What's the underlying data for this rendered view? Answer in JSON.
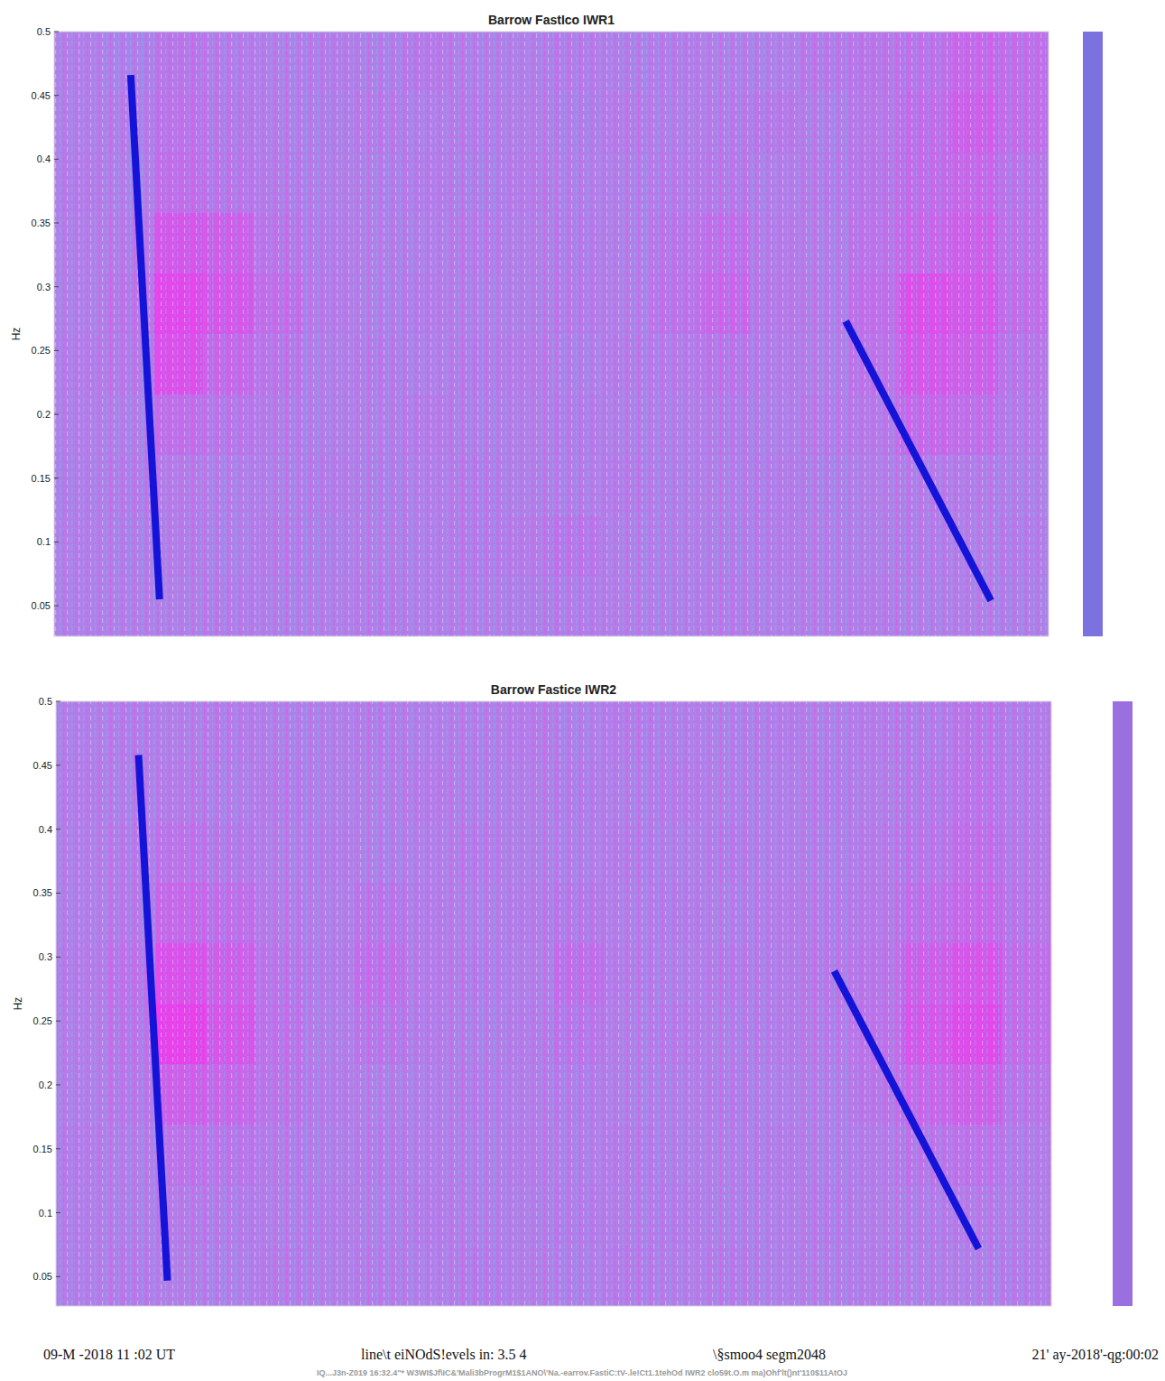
{
  "chart_data": [
    {
      "type": "heatmap",
      "title": "Barrow FastIco IWR1",
      "y_label": "Hz",
      "xlim": [
        0,
        1
      ],
      "ylim": [
        0.026,
        0.5
      ],
      "yticks": [
        0.05,
        0.1,
        0.15,
        0.2,
        0.25,
        0.3,
        0.35,
        0.4,
        0.45,
        0.5
      ],
      "tick_labels": "y",
      "heatmap": {
        "zlim": [
          0,
          1
        ],
        "values": [
          [
            0.45,
            0.42,
            0.5,
            0.47,
            0.44,
            0.46,
            0.43,
            0.48,
            0.45,
            0.44,
            0.47,
            0.43,
            0.46,
            0.45,
            0.44,
            0.48,
            0.5,
            0.52,
            0.6,
            0.55
          ],
          [
            0.44,
            0.46,
            0.52,
            0.48,
            0.45,
            0.43,
            0.47,
            0.44,
            0.46,
            0.45,
            0.43,
            0.47,
            0.45,
            0.46,
            0.48,
            0.44,
            0.49,
            0.55,
            0.65,
            0.55
          ],
          [
            0.46,
            0.44,
            0.55,
            0.5,
            0.46,
            0.45,
            0.44,
            0.46,
            0.43,
            0.47,
            0.45,
            0.44,
            0.47,
            0.48,
            0.45,
            0.46,
            0.5,
            0.56,
            0.6,
            0.5
          ],
          [
            0.45,
            0.47,
            0.7,
            0.65,
            0.5,
            0.46,
            0.45,
            0.44,
            0.47,
            0.45,
            0.46,
            0.44,
            0.5,
            0.55,
            0.47,
            0.45,
            0.52,
            0.6,
            0.65,
            0.52
          ],
          [
            0.44,
            0.5,
            0.8,
            0.7,
            0.55,
            0.47,
            0.44,
            0.46,
            0.45,
            0.44,
            0.47,
            0.45,
            0.52,
            0.6,
            0.48,
            0.46,
            0.55,
            0.75,
            0.7,
            0.55
          ],
          [
            0.46,
            0.48,
            0.75,
            0.6,
            0.5,
            0.45,
            0.46,
            0.44,
            0.46,
            0.47,
            0.44,
            0.46,
            0.47,
            0.5,
            0.46,
            0.45,
            0.52,
            0.7,
            0.65,
            0.5
          ],
          [
            0.45,
            0.44,
            0.55,
            0.5,
            0.46,
            0.44,
            0.45,
            0.47,
            0.44,
            0.45,
            0.46,
            0.44,
            0.45,
            0.46,
            0.44,
            0.47,
            0.48,
            0.6,
            0.55,
            0.47
          ],
          [
            0.43,
            0.46,
            0.47,
            0.45,
            0.44,
            0.46,
            0.43,
            0.45,
            0.46,
            0.44,
            0.45,
            0.46,
            0.44,
            0.45,
            0.46,
            0.43,
            0.45,
            0.47,
            0.46,
            0.44
          ],
          [
            0.45,
            0.43,
            0.46,
            0.44,
            0.46,
            0.43,
            0.45,
            0.44,
            0.46,
            0.47,
            0.5,
            0.44,
            0.45,
            0.43,
            0.46,
            0.45,
            0.44,
            0.46,
            0.45,
            0.46
          ],
          [
            0.44,
            0.45,
            0.44,
            0.46,
            0.43,
            0.45,
            0.46,
            0.44,
            0.45,
            0.43,
            0.46,
            0.45,
            0.43,
            0.46,
            0.44,
            0.45,
            0.46,
            0.44,
            0.45,
            0.43
          ]
        ]
      },
      "series": [
        {
          "type": "line",
          "color": "#1414d8",
          "x": [
            0.077,
            0.106
          ],
          "values": [
            0.466,
            0.055
          ]
        },
        {
          "type": "line",
          "color": "#1414d8",
          "x": [
            0.796,
            0.942
          ],
          "values": [
            0.273,
            0.054
          ]
        }
      ]
    },
    {
      "type": "heatmap",
      "title": "Barrow Fastice IWR2",
      "y_label": "Hz",
      "xlim": [
        0,
        1
      ],
      "ylim": [
        0.027,
        0.5
      ],
      "yticks": [
        0.05,
        0.1,
        0.15,
        0.2,
        0.25,
        0.3,
        0.35,
        0.4,
        0.45,
        0.5
      ],
      "tick_labels": "y",
      "heatmap": {
        "zlim": [
          0,
          1
        ],
        "values": [
          [
            0.44,
            0.46,
            0.45,
            0.47,
            0.44,
            0.45,
            0.46,
            0.44,
            0.45,
            0.47,
            0.44,
            0.46,
            0.45,
            0.44,
            0.46,
            0.45,
            0.47,
            0.46,
            0.5,
            0.46
          ],
          [
            0.46,
            0.44,
            0.47,
            0.45,
            0.46,
            0.44,
            0.45,
            0.47,
            0.44,
            0.45,
            0.46,
            0.44,
            0.47,
            0.45,
            0.44,
            0.46,
            0.45,
            0.48,
            0.52,
            0.47
          ],
          [
            0.45,
            0.47,
            0.52,
            0.48,
            0.45,
            0.46,
            0.44,
            0.45,
            0.47,
            0.44,
            0.45,
            0.46,
            0.44,
            0.46,
            0.45,
            0.44,
            0.47,
            0.5,
            0.55,
            0.48
          ],
          [
            0.44,
            0.48,
            0.6,
            0.55,
            0.47,
            0.45,
            0.5,
            0.46,
            0.45,
            0.46,
            0.48,
            0.45,
            0.46,
            0.44,
            0.47,
            0.46,
            0.48,
            0.55,
            0.6,
            0.5
          ],
          [
            0.46,
            0.52,
            0.75,
            0.65,
            0.5,
            0.46,
            0.55,
            0.47,
            0.46,
            0.45,
            0.55,
            0.46,
            0.45,
            0.47,
            0.46,
            0.48,
            0.5,
            0.65,
            0.72,
            0.55
          ],
          [
            0.45,
            0.5,
            0.85,
            0.7,
            0.52,
            0.45,
            0.5,
            0.46,
            0.44,
            0.46,
            0.5,
            0.45,
            0.47,
            0.45,
            0.46,
            0.47,
            0.52,
            0.7,
            0.78,
            0.55
          ],
          [
            0.44,
            0.48,
            0.65,
            0.6,
            0.5,
            0.46,
            0.45,
            0.44,
            0.46,
            0.45,
            0.46,
            0.44,
            0.45,
            0.46,
            0.44,
            0.45,
            0.5,
            0.6,
            0.65,
            0.5
          ],
          [
            0.46,
            0.45,
            0.52,
            0.5,
            0.46,
            0.44,
            0.46,
            0.45,
            0.44,
            0.46,
            0.45,
            0.46,
            0.44,
            0.45,
            0.46,
            0.44,
            0.46,
            0.5,
            0.52,
            0.46
          ],
          [
            0.45,
            0.44,
            0.47,
            0.46,
            0.45,
            0.46,
            0.44,
            0.46,
            0.45,
            0.44,
            0.46,
            0.45,
            0.46,
            0.44,
            0.45,
            0.46,
            0.45,
            0.46,
            0.47,
            0.45
          ],
          [
            0.44,
            0.46,
            0.45,
            0.44,
            0.46,
            0.45,
            0.46,
            0.44,
            0.46,
            0.45,
            0.44,
            0.46,
            0.45,
            0.46,
            0.44,
            0.45,
            0.46,
            0.45,
            0.44,
            0.46
          ]
        ]
      },
      "series": [
        {
          "type": "line",
          "color": "#1414d8",
          "x": [
            0.083,
            0.112
          ],
          "values": [
            0.458,
            0.047
          ]
        },
        {
          "type": "line",
          "color": "#1414d8",
          "x": [
            0.782,
            0.927
          ],
          "values": [
            0.289,
            0.072
          ]
        }
      ]
    }
  ],
  "footer": {
    "left": "09-M -2018 11 :02 UT",
    "middle": "line\\t eiNOdS!evels in: 3.5   4",
    "right_a": "\\§smoo4 segm2048",
    "right_b": "21' ay-2018'-qg:00:02",
    "path": "IQ...J3n-Z019 16:32.4\"* W3WI$Jf\\IC&'Mali3bProgrM1$1ANO\\'Na.-earrov.FastiC:tV-.le!Ct1.1tehOd  IWR2 clo59t.O.m ma)Ohf'lt()nt'110$11AtOJ"
  }
}
